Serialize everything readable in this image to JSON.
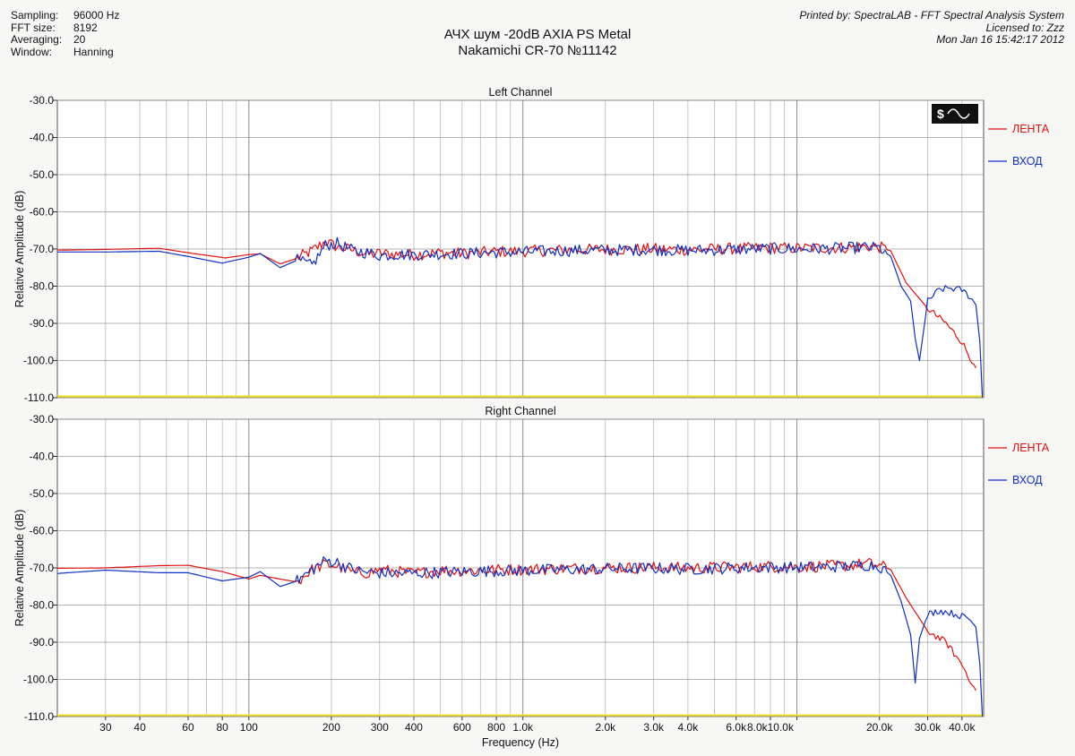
{
  "settings": [
    {
      "label": "Sampling:",
      "value": "96000 Hz"
    },
    {
      "label": "FFT size:",
      "value": "8192"
    },
    {
      "label": "Averaging:",
      "value": "20"
    },
    {
      "label": "Window:",
      "value": "Hanning"
    }
  ],
  "title_line1": "АЧХ шум -20dB  AXIA PS Metal",
  "title_line2": "Nakamichi CR-70 №11142",
  "printed_by": "Printed by: SpectraLAB - FFT Spectral Analysis System",
  "licensed_to": "Licensed to: Zzz",
  "timestamp": "Mon Jan 16 15:42:17 2012",
  "colors": {
    "tape": "#e01010",
    "input": "#1030c0",
    "floor": "#f0e020"
  },
  "chart_data": [
    {
      "type": "line",
      "title": "Left Channel",
      "xlabel": "",
      "ylabel": "Relative Amplitude (dB)",
      "x_scale": "log",
      "xlim": [
        20,
        48000
      ],
      "ylim": [
        -110,
        -30
      ],
      "yticks": [
        -30,
        -40,
        -50,
        -60,
        -70,
        -80,
        -90,
        -100,
        -110
      ],
      "ytick_labels": [
        "-30.0",
        "-40.0",
        "-50.0",
        "-60.0",
        "-70.0",
        "-80.0",
        "-90.0",
        "-100.0",
        "-110.0"
      ],
      "grid": true,
      "legend_position": "right",
      "series": [
        {
          "name": "ЛЕНТА",
          "color": "#e01010",
          "x": [
            20,
            30,
            47,
            60,
            82,
            100,
            110,
            130,
            150,
            170,
            190,
            210,
            240,
            270,
            300,
            350,
            400,
            500,
            600,
            800,
            1000,
            1500,
            2000,
            3000,
            4000,
            6000,
            8000,
            10000,
            15000,
            18000,
            20000,
            22000,
            25000,
            30000,
            35000,
            40000,
            45000
          ],
          "y": [
            -70.3,
            -70.1,
            -69.8,
            -71,
            -72.4,
            -71.5,
            -71.3,
            -74,
            -72.5,
            -70.5,
            -68,
            -69.5,
            -70.3,
            -71.5,
            -71.2,
            -71.4,
            -71.5,
            -71,
            -71.2,
            -70.7,
            -70.6,
            -70.2,
            -70.1,
            -70,
            -70.2,
            -69.9,
            -69.7,
            -69.8,
            -69.6,
            -69.3,
            -69.5,
            -70.5,
            -79,
            -86,
            -90,
            -95,
            -102
          ]
        },
        {
          "name": "ВХОД",
          "color": "#1030c0",
          "x": [
            20,
            30,
            47,
            60,
            80,
            100,
            110,
            130,
            150,
            170,
            190,
            210,
            240,
            270,
            300,
            350,
            400,
            500,
            600,
            800,
            1000,
            1500,
            2000,
            3000,
            4000,
            6000,
            8000,
            10000,
            15000,
            18000,
            20000,
            22000,
            24000,
            26000,
            27000,
            28000,
            30000,
            33000,
            36000,
            40000,
            43000,
            45000,
            46500,
            47500
          ],
          "y": [
            -70.8,
            -70.8,
            -70.6,
            -72,
            -73.8,
            -72.2,
            -71.2,
            -75,
            -73,
            -74.5,
            -69,
            -68.5,
            -70.5,
            -71,
            -71.7,
            -71.5,
            -71.5,
            -71.3,
            -71.2,
            -70.9,
            -70.8,
            -70.4,
            -70.3,
            -70.2,
            -70.4,
            -70.1,
            -69.9,
            -70,
            -69.8,
            -69.5,
            -69.8,
            -72,
            -80,
            -84,
            -94,
            -100,
            -84,
            -81,
            -80.5,
            -81,
            -83,
            -85,
            -95,
            -110
          ]
        }
      ]
    },
    {
      "type": "line",
      "title": "Right Channel",
      "xlabel": "Frequency (Hz)",
      "ylabel": "Relative Amplitude (dB)",
      "x_scale": "log",
      "xlim": [
        20,
        48000
      ],
      "ylim": [
        -110,
        -30
      ],
      "yticks": [
        -30,
        -40,
        -50,
        -60,
        -70,
        -80,
        -90,
        -100,
        -110
      ],
      "ytick_labels": [
        "-30.0",
        "-40.0",
        "-50.0",
        "-60.0",
        "-70.0",
        "-80.0",
        "-90.0",
        "-100.0",
        "-110.0"
      ],
      "xticks": [
        30,
        40,
        60,
        80,
        100,
        200,
        300,
        400,
        600,
        800,
        1000,
        2000,
        3000,
        4000,
        6000,
        8000,
        10000,
        20000,
        30000,
        40000
      ],
      "xtick_labels": [
        "30",
        "40",
        "60",
        "80",
        "100",
        "200",
        "300",
        "400",
        "600",
        "800",
        "1.0k",
        "2.0k",
        "3.0k",
        "4.0k",
        "6.0k",
        "8.0k10.0k",
        "",
        "20.0k",
        "30.0k",
        "40.0k"
      ],
      "grid": true,
      "legend_position": "right",
      "series": [
        {
          "name": "ЛЕНТА",
          "color": "#e01010",
          "x": [
            20,
            30,
            47,
            60,
            80,
            100,
            110,
            130,
            150,
            170,
            190,
            210,
            240,
            270,
            300,
            350,
            400,
            500,
            600,
            800,
            1000,
            1500,
            2000,
            3000,
            4000,
            6000,
            8000,
            10000,
            15000,
            18000,
            20000,
            22000,
            25000,
            30000,
            35000,
            40000,
            45000
          ],
          "y": [
            -70.1,
            -70,
            -69.4,
            -69.3,
            -71,
            -73,
            -72,
            -73,
            -73.8,
            -70.5,
            -69,
            -69.5,
            -71.3,
            -71.3,
            -70.5,
            -71,
            -71.5,
            -70.6,
            -70.8,
            -70.5,
            -70.4,
            -70.1,
            -70,
            -69.9,
            -70,
            -69.8,
            -69.6,
            -69.7,
            -69.4,
            -68.8,
            -69.3,
            -70.5,
            -78,
            -87,
            -90,
            -96,
            -103
          ]
        },
        {
          "name": "ВХОД",
          "color": "#1030c0",
          "x": [
            20,
            30,
            47,
            60,
            80,
            100,
            110,
            130,
            150,
            170,
            190,
            210,
            240,
            270,
            300,
            350,
            400,
            500,
            600,
            800,
            1000,
            1500,
            2000,
            3000,
            4000,
            6000,
            8000,
            10000,
            15000,
            18000,
            20000,
            22000,
            24000,
            26000,
            27000,
            28000,
            30000,
            33000,
            36000,
            40000,
            43000,
            45000,
            46500,
            47500
          ],
          "y": [
            -71.5,
            -70.6,
            -71.3,
            -71.3,
            -73.5,
            -72.5,
            -71,
            -75,
            -73.5,
            -70.5,
            -68,
            -68.5,
            -70.5,
            -71.2,
            -71.4,
            -71.5,
            -71.4,
            -71.2,
            -71,
            -70.8,
            -70.7,
            -70.4,
            -70.2,
            -70.1,
            -70.3,
            -70,
            -69.8,
            -69.9,
            -69.6,
            -69.2,
            -69.5,
            -72,
            -79,
            -88,
            -101,
            -89,
            -82.5,
            -81.5,
            -82,
            -83,
            -84,
            -86,
            -96,
            -110
          ]
        }
      ]
    }
  ]
}
